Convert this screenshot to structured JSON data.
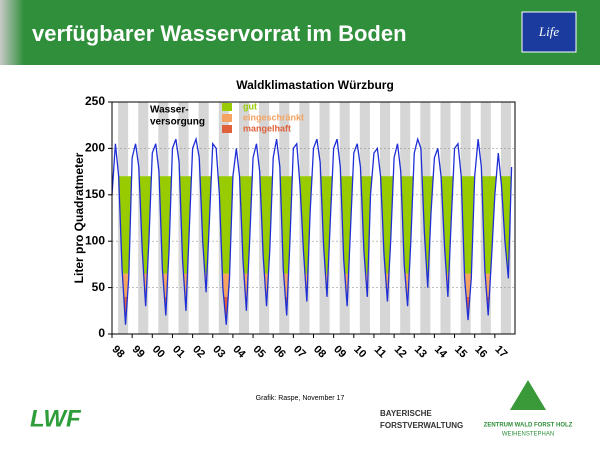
{
  "header": {
    "title": "verfügbarer Wasservorrat im Boden"
  },
  "chart_data": {
    "type": "line",
    "title": "Waldklimastation Würzburg",
    "y_label": "Liter pro Quadratmeter",
    "xlim": [
      1998,
      2018
    ],
    "ylim": [
      0,
      250
    ],
    "yticks": [
      0,
      50,
      100,
      150,
      200,
      250
    ],
    "xticks": [
      {
        "value": 1998,
        "label": "98"
      },
      {
        "value": 1999,
        "label": "99"
      },
      {
        "value": 2000,
        "label": "00"
      },
      {
        "value": 2001,
        "label": "01"
      },
      {
        "value": 2002,
        "label": "02"
      },
      {
        "value": 2003,
        "label": "03"
      },
      {
        "value": 2004,
        "label": "04"
      },
      {
        "value": 2005,
        "label": "05"
      },
      {
        "value": 2006,
        "label": "06"
      },
      {
        "value": 2007,
        "label": "07"
      },
      {
        "value": 2008,
        "label": "08"
      },
      {
        "value": 2009,
        "label": "09"
      },
      {
        "value": 2010,
        "label": "10"
      },
      {
        "value": 2011,
        "label": "11"
      },
      {
        "value": 2012,
        "label": "12"
      },
      {
        "value": 2013,
        "label": "13"
      },
      {
        "value": 2014,
        "label": "14"
      },
      {
        "value": 2015,
        "label": "15"
      },
      {
        "value": 2016,
        "label": "16"
      },
      {
        "value": 2017,
        "label": "17"
      }
    ],
    "grid": true,
    "legend_title": [
      "Wasser-",
      "versorgung"
    ],
    "bands": [
      {
        "name": "gut",
        "color": "#99cc00",
        "range": [
          65,
          170
        ]
      },
      {
        "name": "eingeschränkt",
        "color": "#f4a460",
        "range": [
          40,
          65
        ]
      },
      {
        "name": "mangelhaft",
        "color": "#e0603a",
        "range": [
          0,
          40
        ]
      }
    ],
    "series": [
      {
        "name": "Wasservorrat",
        "color": "#1f2fd6",
        "x": [
          1998.0,
          1998.17,
          1998.33,
          1998.5,
          1998.67,
          1998.83,
          1999.0,
          1999.17,
          1999.33,
          1999.5,
          1999.67,
          1999.83,
          2000.0,
          2000.17,
          2000.33,
          2000.5,
          2000.67,
          2000.83,
          2001.0,
          2001.17,
          2001.33,
          2001.5,
          2001.67,
          2001.83,
          2002.0,
          2002.17,
          2002.33,
          2002.5,
          2002.67,
          2002.83,
          2003.0,
          2003.17,
          2003.33,
          2003.5,
          2003.67,
          2003.83,
          2004.0,
          2004.17,
          2004.33,
          2004.5,
          2004.67,
          2004.83,
          2005.0,
          2005.17,
          2005.33,
          2005.5,
          2005.67,
          2005.83,
          2006.0,
          2006.17,
          2006.33,
          2006.5,
          2006.67,
          2006.83,
          2007.0,
          2007.17,
          2007.33,
          2007.5,
          2007.67,
          2007.83,
          2008.0,
          2008.17,
          2008.33,
          2008.5,
          2008.67,
          2008.83,
          2009.0,
          2009.17,
          2009.33,
          2009.5,
          2009.67,
          2009.83,
          2010.0,
          2010.17,
          2010.33,
          2010.5,
          2010.67,
          2010.83,
          2011.0,
          2011.17,
          2011.33,
          2011.5,
          2011.67,
          2011.83,
          2012.0,
          2012.17,
          2012.33,
          2012.5,
          2012.67,
          2012.83,
          2013.0,
          2013.17,
          2013.33,
          2013.5,
          2013.67,
          2013.83,
          2014.0,
          2014.17,
          2014.33,
          2014.5,
          2014.67,
          2014.83,
          2015.0,
          2015.17,
          2015.33,
          2015.5,
          2015.67,
          2015.83,
          2016.0,
          2016.17,
          2016.33,
          2016.5,
          2016.67,
          2016.83,
          2017.0,
          2017.17,
          2017.33,
          2017.5,
          2017.67,
          2017.83
        ],
        "values": [
          150,
          205,
          170,
          70,
          10,
          60,
          190,
          205,
          180,
          90,
          30,
          100,
          195,
          205,
          175,
          70,
          20,
          90,
          200,
          210,
          185,
          80,
          25,
          110,
          200,
          210,
          190,
          100,
          45,
          120,
          205,
          200,
          150,
          50,
          10,
          60,
          170,
          200,
          170,
          80,
          25,
          100,
          190,
          205,
          175,
          85,
          30,
          90,
          190,
          210,
          180,
          70,
          20,
          100,
          200,
          205,
          160,
          90,
          35,
          130,
          200,
          210,
          185,
          95,
          40,
          120,
          200,
          210,
          180,
          80,
          30,
          110,
          195,
          205,
          180,
          90,
          40,
          150,
          195,
          200,
          170,
          85,
          35,
          100,
          190,
          205,
          175,
          75,
          30,
          100,
          195,
          210,
          200,
          110,
          50,
          130,
          190,
          200,
          170,
          95,
          40,
          120,
          200,
          205,
          170,
          60,
          15,
          60,
          170,
          210,
          180,
          70,
          20,
          80,
          150,
          195,
          160,
          100,
          60,
          180
        ]
      }
    ]
  },
  "footer": {
    "credit": "Grafik: Raspe, November 17",
    "logo_left": "LWF",
    "agency": [
      "BAYERISCHE",
      "FORSTVERWALTUNG"
    ],
    "center": [
      "ZENTRUM WALD FORST HOLZ",
      "WEIHENSTEPHAN"
    ]
  }
}
